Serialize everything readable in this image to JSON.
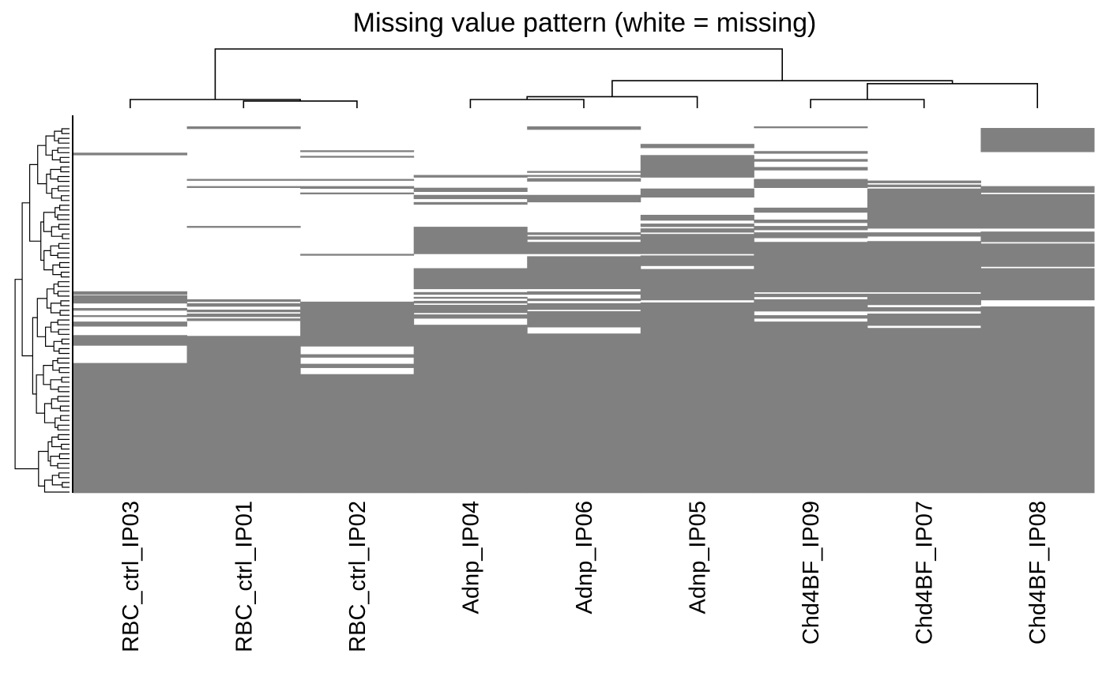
{
  "chart_data": {
    "type": "heatmap",
    "title": "Missing value pattern (white = missing)",
    "legend": "none",
    "colors": {
      "present": "#808080",
      "missing": "#ffffff",
      "dendrogram": "#000000"
    },
    "row_count": 460,
    "columns": [
      "RBC_ctrl_IP03",
      "RBC_ctrl_IP01",
      "RBC_ctrl_IP02",
      "Adnp_IP04",
      "Adnp_IP06",
      "Adnp_IP05",
      "Chd4BF_IP09",
      "Chd4BF_IP07",
      "Chd4BF_IP08"
    ],
    "present_ranges_by_column": [
      [
        [
          33,
          36
        ],
        [
          207,
          211
        ],
        [
          212,
          222
        ],
        [
          228,
          231
        ],
        [
          237,
          239
        ],
        [
          245,
          251
        ],
        [
          262,
          275
        ],
        [
          297,
          460
        ]
      ],
      [
        [
          0,
          3
        ],
        [
          66,
          68
        ],
        [
          75,
          77
        ],
        [
          125,
          127
        ],
        [
          217,
          220
        ],
        [
          222,
          226
        ],
        [
          230,
          233
        ],
        [
          235,
          239
        ],
        [
          241,
          244
        ],
        [
          263,
          276
        ],
        [
          276,
          460
        ]
      ],
      [
        [
          30,
          32
        ],
        [
          37,
          39
        ],
        [
          66,
          68
        ],
        [
          75,
          78
        ],
        [
          83,
          85
        ],
        [
          160,
          162
        ],
        [
          220,
          224
        ],
        [
          224,
          276
        ],
        [
          286,
          290
        ],
        [
          298,
          303
        ],
        [
          311,
          460
        ]
      ],
      [
        [
          61,
          64
        ],
        [
          77,
          82
        ],
        [
          86,
          91
        ],
        [
          95,
          98
        ],
        [
          126,
          160
        ],
        [
          178,
          204
        ],
        [
          208,
          211
        ],
        [
          214,
          216
        ],
        [
          219,
          222
        ],
        [
          224,
          234
        ],
        [
          236,
          241
        ],
        [
          249,
          460
        ]
      ],
      [
        [
          0,
          4
        ],
        [
          56,
          58
        ],
        [
          61,
          63
        ],
        [
          65,
          69
        ],
        [
          86,
          95
        ],
        [
          133,
          136
        ],
        [
          138,
          142
        ],
        [
          145,
          160
        ],
        [
          163,
          204
        ],
        [
          207,
          211
        ],
        [
          216,
          219
        ],
        [
          222,
          230
        ],
        [
          232,
          252
        ],
        [
          260,
          460
        ]
      ],
      [
        [
          22,
          27
        ],
        [
          36,
          44
        ],
        [
          44,
          64
        ],
        [
          78,
          89
        ],
        [
          111,
          118
        ],
        [
          122,
          126
        ],
        [
          128,
          133
        ],
        [
          135,
          160
        ],
        [
          162,
          175
        ],
        [
          179,
          218
        ],
        [
          221,
          460
        ]
      ],
      [
        [
          0,
          2
        ],
        [
          31,
          34
        ],
        [
          41,
          44
        ],
        [
          51,
          55
        ],
        [
          66,
          77
        ],
        [
          102,
          108
        ],
        [
          117,
          121
        ],
        [
          125,
          130
        ],
        [
          133,
          140
        ],
        [
          145,
          160
        ],
        [
          160,
          208
        ],
        [
          210,
          214
        ],
        [
          217,
          232
        ],
        [
          237,
          241
        ],
        [
          245,
          460
        ]
      ],
      [
        [
          68,
          71
        ],
        [
          73,
          76
        ],
        [
          78,
          80
        ],
        [
          80,
          128
        ],
        [
          133,
          138
        ],
        [
          144,
          208
        ],
        [
          210,
          224
        ],
        [
          227,
          232
        ],
        [
          235,
          250
        ],
        [
          253,
          460
        ]
      ],
      [
        [
          2,
          32
        ],
        [
          75,
          83
        ],
        [
          85,
          128
        ],
        [
          132,
          145
        ],
        [
          147,
          176
        ],
        [
          178,
          218
        ],
        [
          226,
          460
        ]
      ]
    ],
    "column_dendrogram": {
      "leaf_order": [
        0,
        1,
        2,
        3,
        4,
        5,
        6,
        7,
        8
      ],
      "merges": [
        {
          "left": 1,
          "right": 2,
          "height": 0.6
        },
        {
          "left": 0,
          "right": "m1",
          "height": 0.61
        },
        {
          "left": 3,
          "right": 4,
          "height": 0.61
        },
        {
          "left": "m3",
          "right": 5,
          "height": 0.63
        },
        {
          "left": 6,
          "right": 7,
          "height": 0.61
        },
        {
          "left": "m5",
          "right": 8,
          "height": 0.72
        },
        {
          "left": "m4",
          "right": "m6",
          "height": 0.74
        },
        {
          "left": "m2",
          "right": "m7",
          "height": 0.96
        }
      ]
    }
  }
}
